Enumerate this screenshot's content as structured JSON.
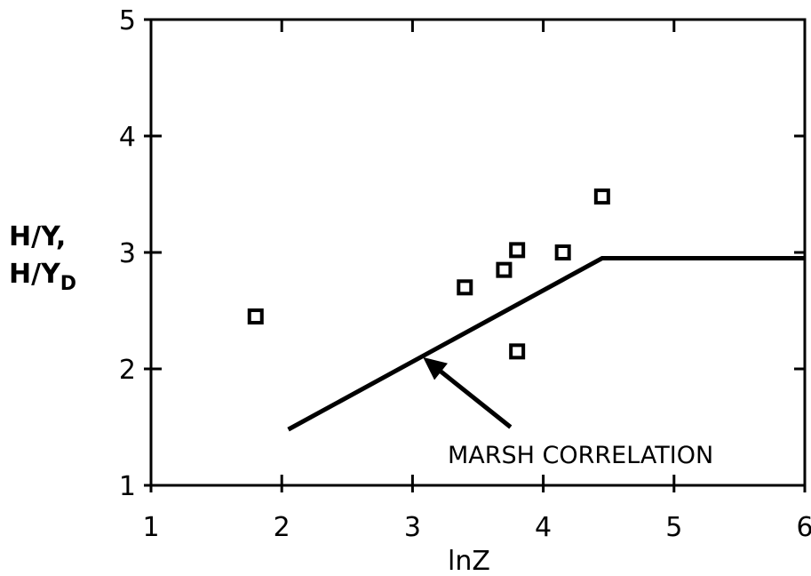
{
  "chart_data": {
    "type": "scatter",
    "xlabel": "lnZ",
    "ylabel_line1": "H/Y,",
    "ylabel_line2_main": "H/Y",
    "ylabel_line2_sub": "D",
    "xlim": [
      1,
      6
    ],
    "ylim": [
      1,
      5
    ],
    "xticks": [
      "1",
      "2",
      "3",
      "4",
      "5",
      "6"
    ],
    "yticks": [
      "1",
      "2",
      "3",
      "4",
      "5"
    ],
    "grid": false,
    "series": [
      {
        "kind": "points",
        "x": [
          1.8,
          3.4,
          3.7,
          3.8,
          3.8,
          4.15,
          4.45
        ],
        "y": [
          2.45,
          2.7,
          2.85,
          3.02,
          2.15,
          3.0,
          3.48
        ]
      },
      {
        "name": "MARSH CORRELATION",
        "kind": "line",
        "x": [
          2.05,
          4.45,
          6.0
        ],
        "y": [
          1.48,
          2.95,
          2.95
        ]
      }
    ],
    "annotation": {
      "text": "MARSH CORRELATION",
      "arrow_from": [
        3.75,
        1.5
      ],
      "arrow_to": [
        3.08,
        2.1
      ]
    }
  }
}
